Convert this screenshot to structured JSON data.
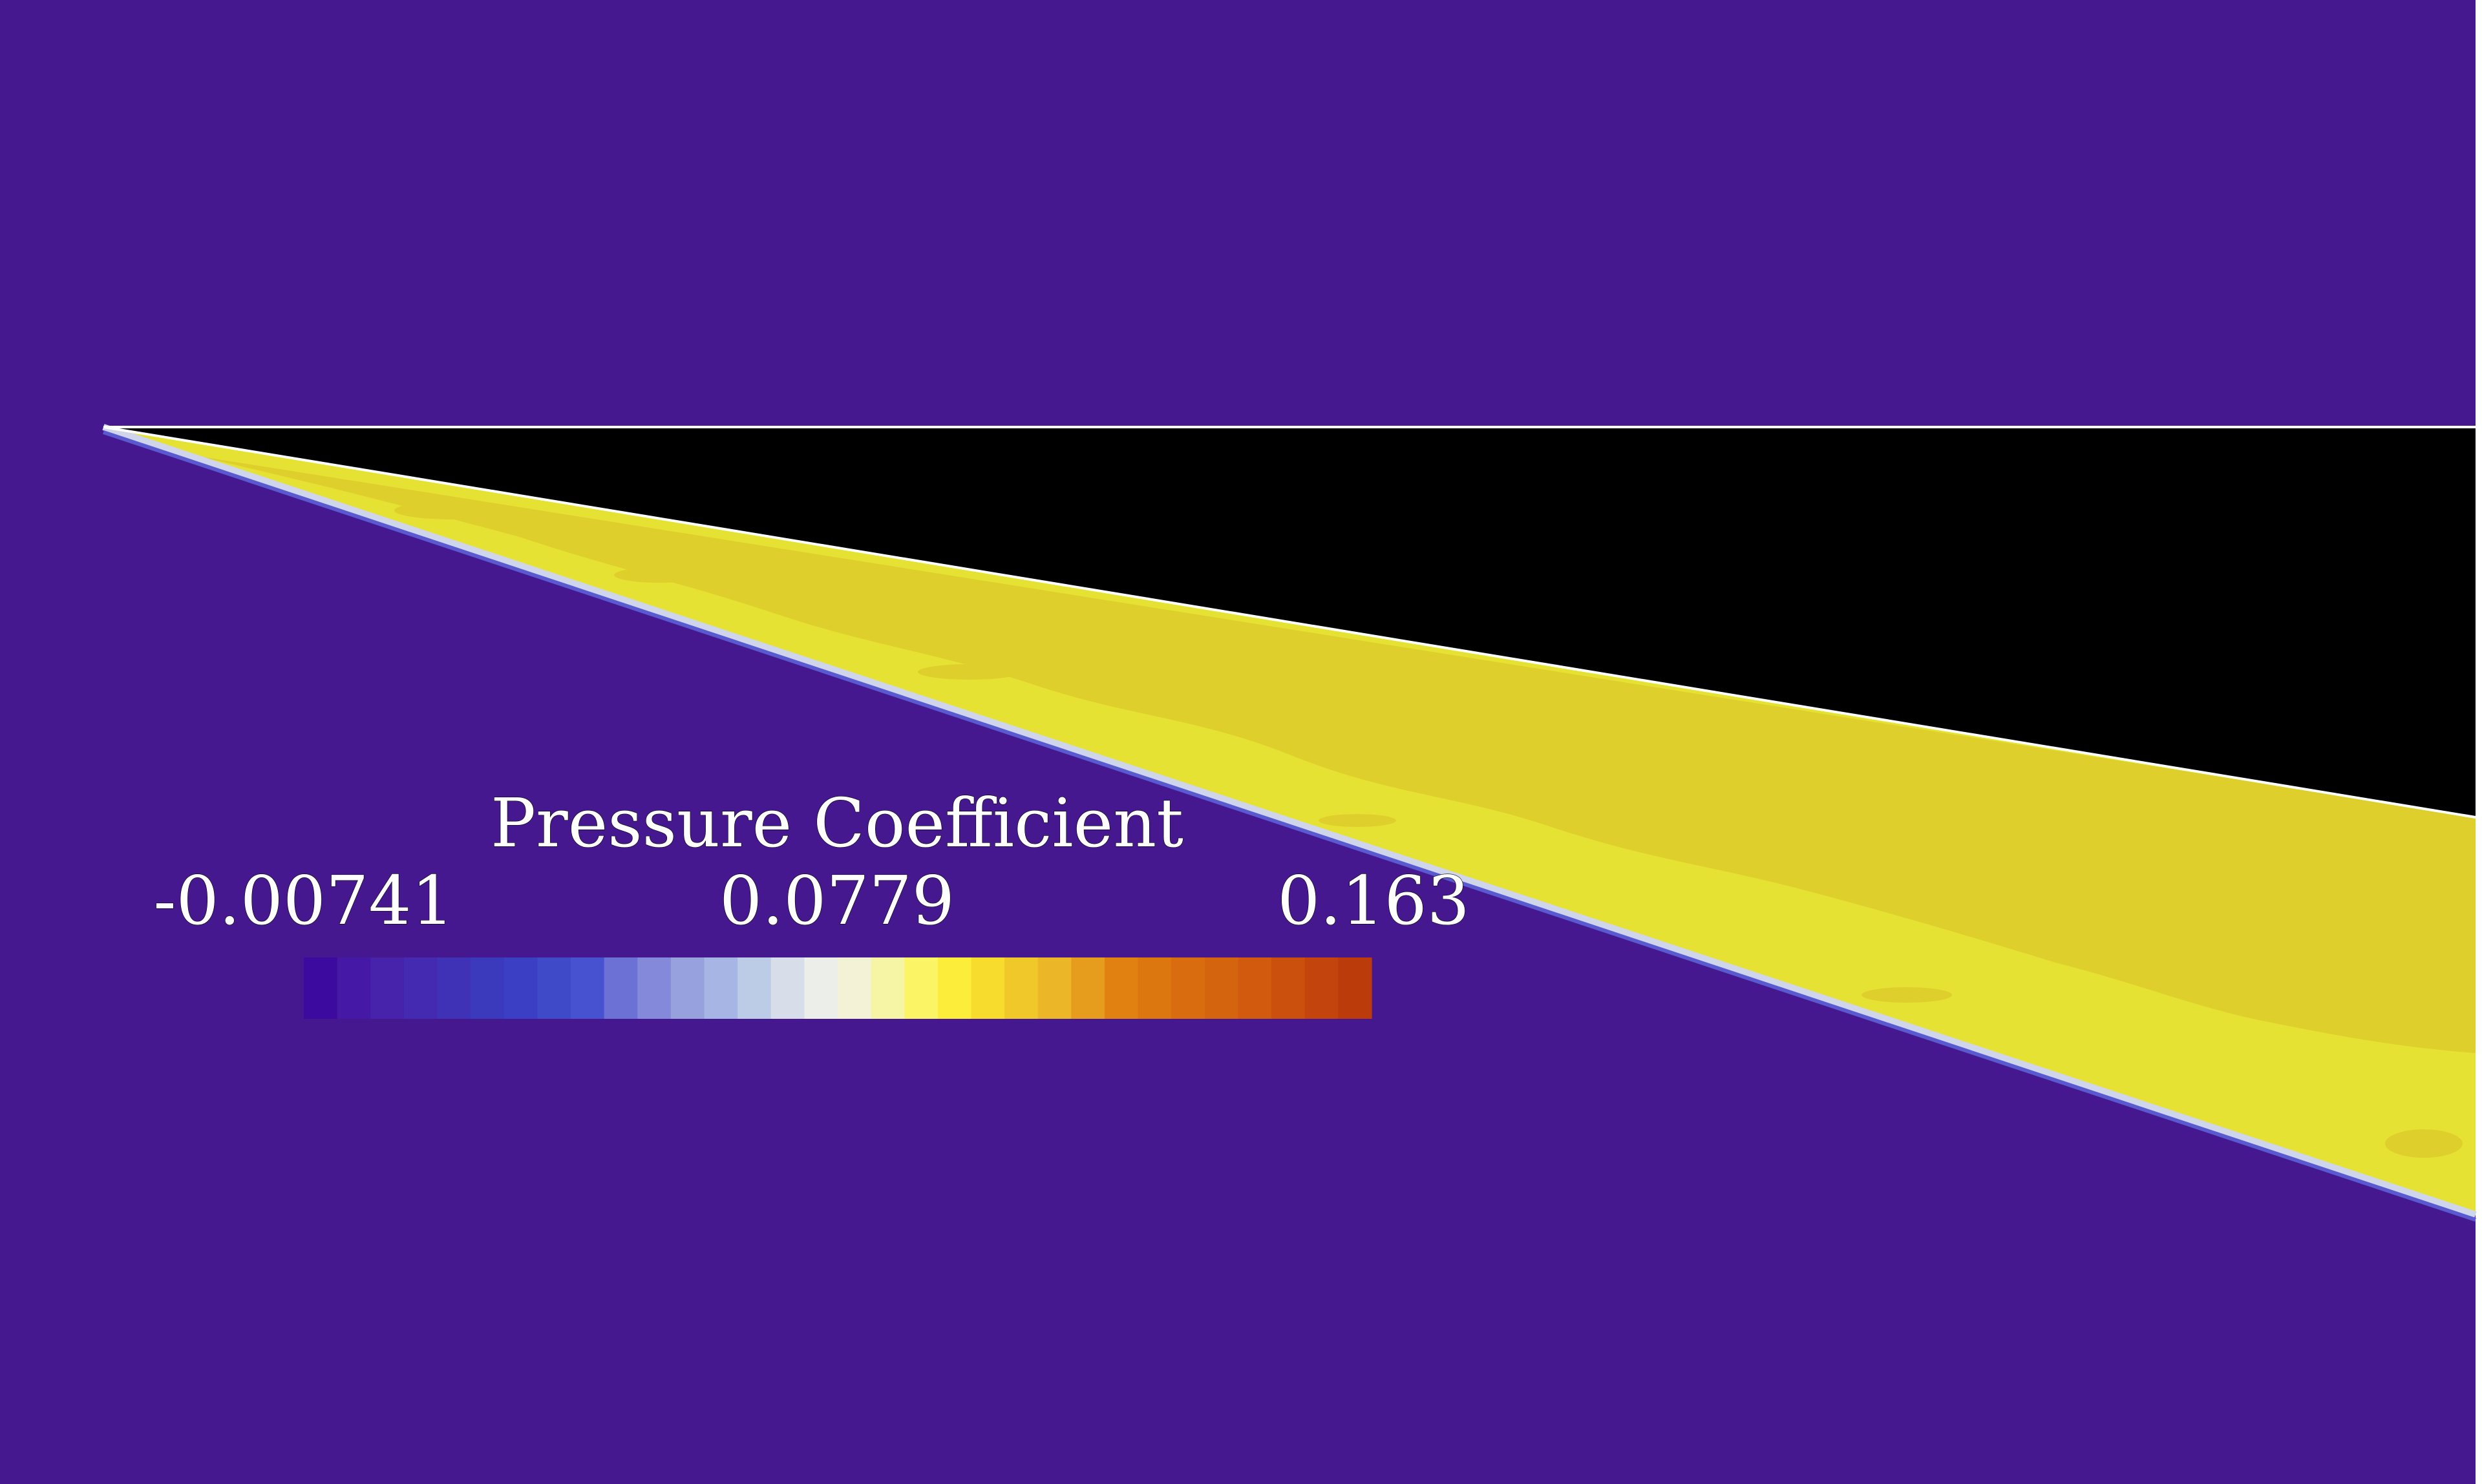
{
  "legend": {
    "title": "Pressure Coefficient",
    "min_label": "-0.00741",
    "mid_label": "0.0779",
    "max_label": "0.163"
  },
  "colormap": {
    "background": "#461890",
    "body": "#000000",
    "shock_region_light": "#e6e233",
    "shock_region_dark": "#dfcf2c",
    "outline": "#ffffff",
    "swatches": [
      "#3d0aa0",
      "#4519a5",
      "#4722ab",
      "#432ab0",
      "#3f32b6",
      "#3b39bc",
      "#3a3fc3",
      "#3f4ac9",
      "#4652cf",
      "#6c71d6",
      "#8489da",
      "#97a1de",
      "#a6b5e3",
      "#bccce6",
      "#d7dde9",
      "#eceeea",
      "#f4f2d6",
      "#f6f5a6",
      "#fbf566",
      "#fced3a",
      "#f8dc2d",
      "#f0c82a",
      "#ebb627",
      "#e69c1d",
      "#e08112",
      "#dc760f",
      "#d96c0f",
      "#d5640f",
      "#d15a0e",
      "#cb4f0d",
      "#c3440c",
      "#bc3b0a"
    ]
  }
}
